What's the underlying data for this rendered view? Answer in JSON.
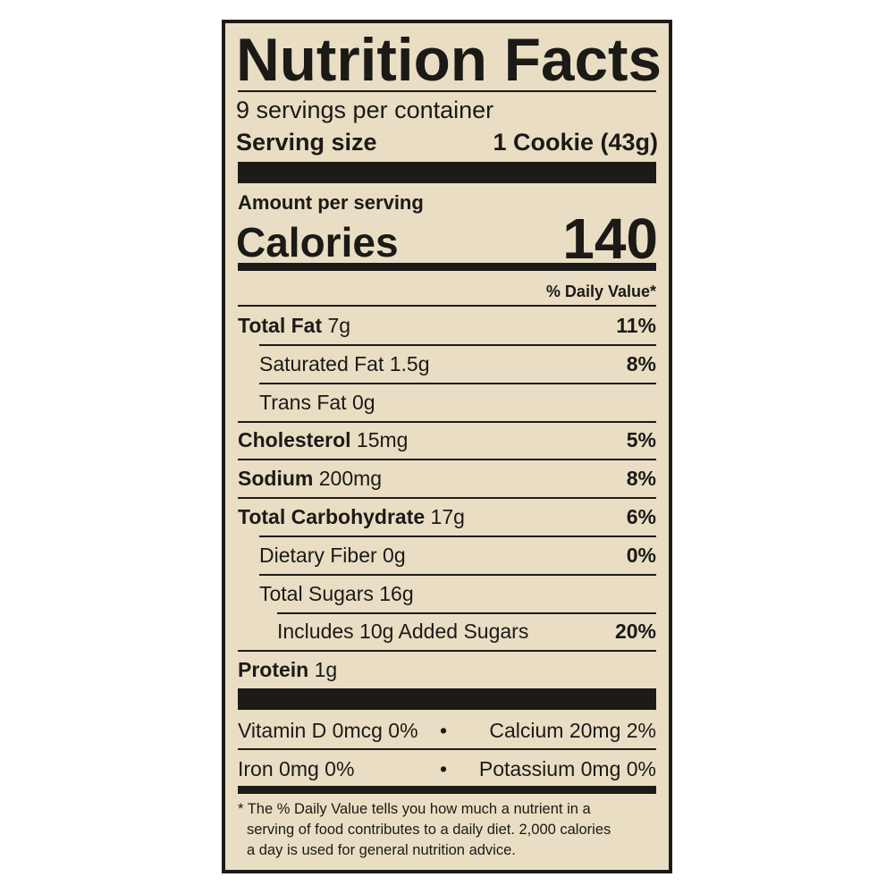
{
  "title": "Nutrition Facts",
  "servings_per_container": "9 servings per container",
  "serving_size_label": "Serving size",
  "serving_size_value": "1 Cookie (43g)",
  "amount_per_serving": "Amount per serving",
  "calories_label": "Calories",
  "calories_value": "140",
  "daily_value_header": "% Daily Value*",
  "nutrients": [
    {
      "name": "Total Fat",
      "amount": "7g",
      "dv": "11%"
    },
    {
      "name": "Saturated Fat",
      "amount": "1.5g",
      "dv": "8%"
    },
    {
      "name": "Trans Fat",
      "amount": "0g",
      "dv": ""
    },
    {
      "name": "Cholesterol",
      "amount": "15mg",
      "dv": "5%"
    },
    {
      "name": "Sodium",
      "amount": "200mg",
      "dv": "8%"
    },
    {
      "name": "Total Carbohydrate",
      "amount": "17g",
      "dv": "6%"
    },
    {
      "name": "Dietary Fiber",
      "amount": "0g",
      "dv": "0%"
    },
    {
      "name": "Total Sugars",
      "amount": "16g",
      "dv": ""
    },
    {
      "name": "Includes 10g Added Sugars",
      "amount": "",
      "dv": "20%"
    },
    {
      "name": "Protein",
      "amount": "1g",
      "dv": ""
    }
  ],
  "vitamins": [
    {
      "left": "Vitamin D 0mcg 0%",
      "right": "Calcium 20mg 2%"
    },
    {
      "left": "Iron 0mg 0%",
      "right": "Potassium 0mg 0%"
    }
  ],
  "bullet": "•",
  "footnote": "* The % Daily Value tells you how much a nutrient in a serving of food contributes to a daily diet. 2,000 calories a day is used for general nutrition advice.",
  "footnote_lines": [
    "* The % Daily Value tells you how much a nutrient in a",
    "serving of food contributes to a daily diet. 2,000 calories",
    "a day is used for general nutrition advice."
  ],
  "colors": {
    "background": "#e9dec3",
    "ink": "#1c1b18"
  }
}
